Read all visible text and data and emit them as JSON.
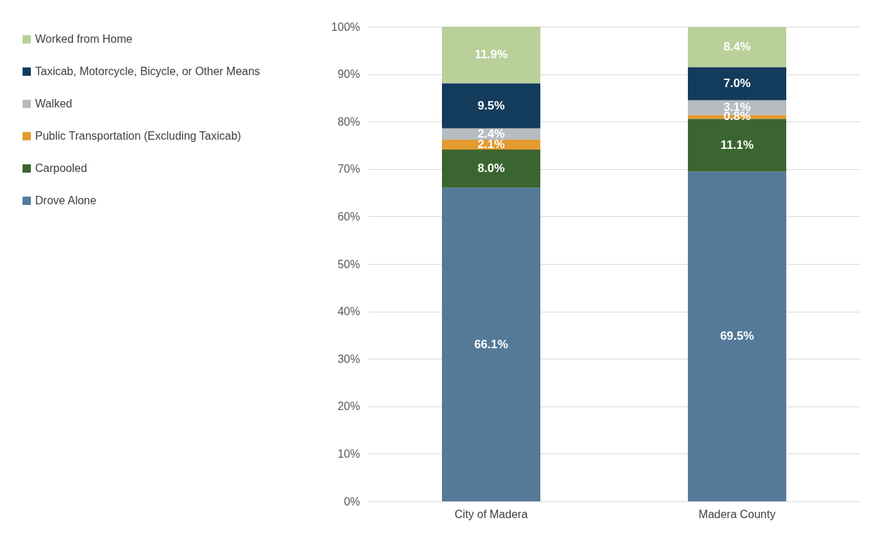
{
  "chart_data": {
    "type": "bar",
    "stacked": true,
    "categories": [
      "City of Madera",
      "Madera County"
    ],
    "ylim": [
      0,
      100
    ],
    "yticks": [
      {
        "value": 0,
        "label": "0%"
      },
      {
        "value": 10,
        "label": "10%"
      },
      {
        "value": 20,
        "label": "20%"
      },
      {
        "value": 30,
        "label": "30%"
      },
      {
        "value": 40,
        "label": "40%"
      },
      {
        "value": 50,
        "label": "50%"
      },
      {
        "value": 60,
        "label": "60%"
      },
      {
        "value": 70,
        "label": "70%"
      },
      {
        "value": 80,
        "label": "80%"
      },
      {
        "value": 90,
        "label": "90%"
      },
      {
        "value": 100,
        "label": "100%"
      }
    ],
    "grid": "y",
    "legend": "left",
    "series": [
      {
        "name": "Drove Alone",
        "color": "#557a99",
        "values": [
          66.1,
          69.5
        ],
        "value_labels": [
          "66.1%",
          "69.5%"
        ]
      },
      {
        "name": "Carpooled",
        "color": "#3b6530",
        "values": [
          8.0,
          11.1
        ],
        "value_labels": [
          "8.0%",
          "11.1%"
        ]
      },
      {
        "name": "Public Transportation (Excluding Taxicab)",
        "color": "#e39b2f",
        "values": [
          2.1,
          0.8
        ],
        "value_labels": [
          "2.1%",
          "0.8%"
        ]
      },
      {
        "name": "Walked",
        "color": "#b7bcc1",
        "values": [
          2.4,
          3.1
        ],
        "value_labels": [
          "2.4%",
          "3.1%"
        ]
      },
      {
        "name": "Taxicab, Motorcycle, Bicycle, or Other Means",
        "color": "#133b5c",
        "values": [
          9.5,
          7.0
        ],
        "value_labels": [
          "9.5%",
          "7.0%"
        ]
      },
      {
        "name": "Worked from Home",
        "color": "#b9d09a",
        "values": [
          11.9,
          8.4
        ],
        "value_labels": [
          "11.9%",
          "8.4%"
        ]
      }
    ]
  }
}
